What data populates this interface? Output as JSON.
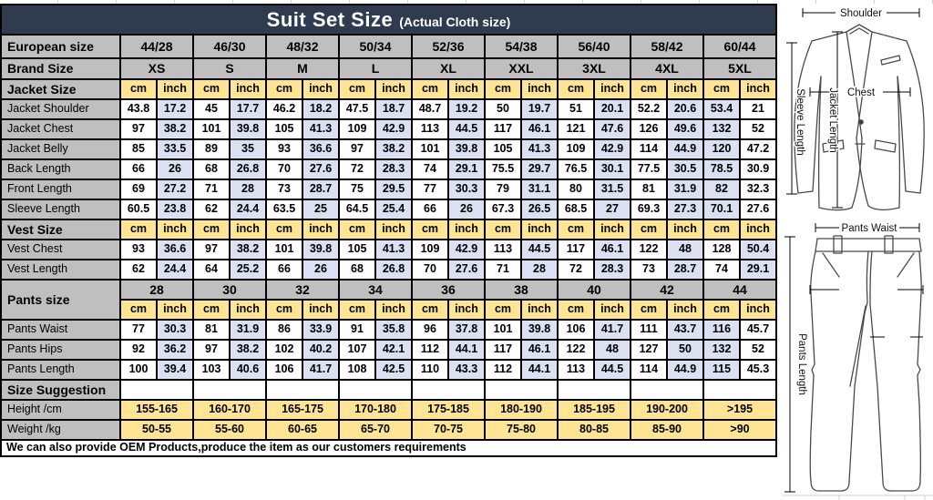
{
  "table": {
    "title": {
      "main": "Suit Set Size",
      "sub": "(Actual Cloth size)"
    },
    "european_label": "European size",
    "european_sizes": [
      "44/28",
      "46/30",
      "48/32",
      "50/34",
      "52/36",
      "54/38",
      "56/40",
      "58/42",
      "60/44"
    ],
    "brand_label": "Brand Size",
    "brand_sizes": [
      "XS",
      "S",
      "M",
      "L",
      "XL",
      "XXL",
      "3XL",
      "4XL",
      "5XL"
    ],
    "unit_cm": "cm",
    "unit_inch": "inch",
    "sections": [
      {
        "label": "Jacket Size",
        "corner_marker": true,
        "swap_last_column_colors": true,
        "rows": [
          {
            "label": "Jacket Shoulder",
            "cm": [
              "43.8",
              "45",
              "46.2",
              "47.5",
              "48.7",
              "50",
              "51",
              "52.2",
              "53.4"
            ],
            "inch": [
              "17.2",
              "17.7",
              "18.2",
              "18.7",
              "19.2",
              "19.7",
              "20.1",
              "20.6",
              "21"
            ]
          },
          {
            "label": "Jacket Chest",
            "cm": [
              "97",
              "101",
              "105",
              "109",
              "113",
              "117",
              "121",
              "126",
              "132"
            ],
            "inch": [
              "38.2",
              "39.8",
              "41.3",
              "42.9",
              "44.5",
              "46.1",
              "47.6",
              "49.6",
              "52"
            ]
          },
          {
            "label": "Jacket Belly",
            "cm": [
              "85",
              "89",
              "93",
              "97",
              "101",
              "105",
              "109",
              "114",
              "120"
            ],
            "inch": [
              "33.5",
              "35",
              "36.6",
              "38.2",
              "39.8",
              "41.3",
              "42.9",
              "44.9",
              "47.2"
            ]
          },
          {
            "label": "Back Length",
            "cm": [
              "66",
              "68",
              "70",
              "72",
              "74",
              "75.5",
              "76.5",
              "77.5",
              "78.5"
            ],
            "inch": [
              "26",
              "26.8",
              "27.6",
              "28.3",
              "29.1",
              "29.7",
              "30.1",
              "30.5",
              "30.9"
            ]
          },
          {
            "label": "Front Length",
            "cm": [
              "69",
              "71",
              "73",
              "75",
              "77",
              "79",
              "80",
              "81",
              "82"
            ],
            "inch": [
              "27.2",
              "28",
              "28.7",
              "29.5",
              "30.3",
              "31.1",
              "31.5",
              "31.9",
              "32.3"
            ]
          },
          {
            "label": "Sleeve Length",
            "cm": [
              "60.5",
              "62",
              "63.5",
              "64.5",
              "66",
              "67.3",
              "68.5",
              "69.3",
              "70.1"
            ],
            "inch": [
              "23.8",
              "24.4",
              "25",
              "25.4",
              "26",
              "26.5",
              "27",
              "27.3",
              "27.6"
            ]
          }
        ]
      },
      {
        "label": "Vest Size",
        "corner_marker": false,
        "swap_last_column_colors": false,
        "rows": [
          {
            "label": "Vest Chest",
            "cm": [
              "93",
              "97",
              "101",
              "105",
              "109",
              "113",
              "117",
              "122",
              "128"
            ],
            "inch": [
              "36.6",
              "38.2",
              "39.8",
              "41.3",
              "42.9",
              "44.5",
              "46.1",
              "48",
              "50.4"
            ]
          },
          {
            "label": "Vest Length",
            "cm": [
              "62",
              "64",
              "66",
              "68",
              "70",
              "71",
              "72",
              "73",
              "74"
            ],
            "inch": [
              "24.4",
              "25.2",
              "26",
              "26.8",
              "27.6",
              "28",
              "28.3",
              "28.7",
              "29.1"
            ]
          }
        ]
      },
      {
        "label": "Pants size",
        "corner_marker": false,
        "swap_last_column_colors": true,
        "sizes": [
          "28",
          "30",
          "32",
          "34",
          "36",
          "38",
          "40",
          "42",
          "44"
        ],
        "rows": [
          {
            "label": "Pants Waist",
            "cm": [
              "77",
              "81",
              "86",
              "91",
              "96",
              "101",
              "106",
              "111",
              "116"
            ],
            "inch": [
              "30.3",
              "31.9",
              "33.9",
              "35.8",
              "37.8",
              "39.8",
              "41.7",
              "43.7",
              "45.7"
            ]
          },
          {
            "label": "Pants Hips",
            "cm": [
              "92",
              "97",
              "102",
              "107",
              "112",
              "117",
              "122",
              "127",
              "132"
            ],
            "inch": [
              "36.2",
              "38.2",
              "40.2",
              "42.1",
              "44.1",
              "46.1",
              "48",
              "50",
              "52"
            ]
          },
          {
            "label": "Pants Length",
            "cm": [
              "100",
              "103",
              "106",
              "108",
              "110",
              "112",
              "113",
              "114",
              "115"
            ],
            "inch": [
              "39.4",
              "40.6",
              "41.7",
              "42.5",
              "43.3",
              "44.1",
              "44.5",
              "44.9",
              "45.3"
            ]
          }
        ]
      }
    ],
    "suggestion": {
      "label": "Size Suggestion",
      "rows": [
        {
          "label": "Height /cm",
          "values": [
            "155-165",
            "160-170",
            "165-175",
            "170-180",
            "175-185",
            "180-190",
            "185-195",
            "190-200",
            ">195"
          ]
        },
        {
          "label": "Weight /kg",
          "values": [
            "50-55",
            "55-60",
            "60-65",
            "65-70",
            "70-75",
            "75-80",
            "80-85",
            "85-90",
            ">90"
          ]
        }
      ]
    },
    "footer": "We can also provide OEM Products,produce the item as our customers requirements"
  },
  "diagram": {
    "jacket_labels": {
      "shoulder": "Shoulder",
      "chest": "Chest",
      "jacket_length": "Jacket Length",
      "sleeve_length": "Sleeve Length"
    },
    "pants_labels": {
      "pants_waist": "Pants Waist",
      "pants_length": "Pants Length"
    }
  },
  "colors": {
    "header_bar": "#2F3B4E",
    "cell_gray": "#BFBFBF",
    "cell_yellow": "#FFE593",
    "cell_lavender": "#D9E1F2",
    "comment_marker_green": "#0E8044"
  }
}
